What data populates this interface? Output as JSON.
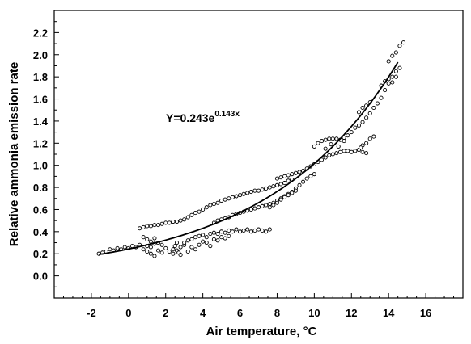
{
  "chart_data": {
    "type": "scatter",
    "title": "",
    "xlabel": "Air temperature, °C",
    "ylabel": "Relative ammonia emission rate",
    "xlim": [
      -4,
      18
    ],
    "ylim": [
      -0.2,
      2.4
    ],
    "x_ticks": [
      -2,
      0,
      2,
      4,
      6,
      8,
      10,
      12,
      14,
      16
    ],
    "y_ticks": [
      0.0,
      0.2,
      0.4,
      0.6,
      0.8,
      1.0,
      1.2,
      1.4,
      1.6,
      1.8,
      2.0,
      2.2
    ],
    "x_tick_labels": [
      "-2",
      "0",
      "2",
      "4",
      "6",
      "8",
      "10",
      "12",
      "14",
      "16"
    ],
    "y_tick_labels": [
      "0.0",
      "0.2",
      "0.4",
      "0.6",
      "0.8",
      "1.0",
      "1.2",
      "1.4",
      "1.6",
      "1.8",
      "2.0",
      "2.2"
    ],
    "grid": false,
    "legend": "none",
    "annotation": {
      "prefix": "Y=0.243e",
      "exponent": "0.143x"
    },
    "fit": {
      "model": "exponential",
      "a": 0.243,
      "b": 0.143,
      "x_range": [
        -1.6,
        14.5
      ]
    },
    "series": [
      {
        "marker": "open-circle",
        "points": [
          [
            -1.6,
            0.2
          ],
          [
            -1.4,
            0.21
          ],
          [
            -1.2,
            0.22
          ],
          [
            -1.0,
            0.24
          ],
          [
            -0.8,
            0.23
          ],
          [
            -0.6,
            0.25
          ],
          [
            -0.4,
            0.24
          ],
          [
            -0.2,
            0.26
          ],
          [
            0.0,
            0.25
          ],
          [
            0.2,
            0.27
          ],
          [
            0.4,
            0.26
          ],
          [
            0.6,
            0.28
          ],
          [
            0.8,
            0.24
          ],
          [
            1.0,
            0.27
          ],
          [
            1.2,
            0.26
          ],
          [
            1.4,
            0.29
          ],
          [
            1.6,
            0.23
          ],
          [
            1.8,
            0.21
          ],
          [
            2.0,
            0.25
          ],
          [
            2.2,
            0.22
          ],
          [
            2.4,
            0.24
          ],
          [
            2.6,
            0.23
          ],
          [
            2.8,
            0.26
          ],
          [
            3.0,
            0.28
          ],
          [
            0.8,
            0.35
          ],
          [
            1.0,
            0.33
          ],
          [
            1.2,
            0.31
          ],
          [
            1.4,
            0.34
          ],
          [
            1.0,
            0.22
          ],
          [
            1.2,
            0.2
          ],
          [
            1.4,
            0.18
          ],
          [
            1.6,
            0.3
          ],
          [
            1.8,
            0.28
          ],
          [
            2.4,
            0.2
          ],
          [
            2.5,
            0.27
          ],
          [
            2.6,
            0.3
          ],
          [
            2.7,
            0.21
          ],
          [
            2.8,
            0.19
          ],
          [
            0.6,
            0.43
          ],
          [
            0.8,
            0.44
          ],
          [
            1.0,
            0.45
          ],
          [
            1.2,
            0.45
          ],
          [
            1.4,
            0.46
          ],
          [
            1.6,
            0.46
          ],
          [
            1.8,
            0.47
          ],
          [
            2.0,
            0.48
          ],
          [
            2.2,
            0.48
          ],
          [
            2.4,
            0.49
          ],
          [
            2.6,
            0.49
          ],
          [
            2.8,
            0.5
          ],
          [
            3.0,
            0.3
          ],
          [
            3.2,
            0.32
          ],
          [
            3.4,
            0.33
          ],
          [
            3.6,
            0.35
          ],
          [
            3.8,
            0.36
          ],
          [
            4.0,
            0.37
          ],
          [
            4.2,
            0.35
          ],
          [
            4.4,
            0.38
          ],
          [
            4.6,
            0.39
          ],
          [
            4.8,
            0.38
          ],
          [
            5.0,
            0.4
          ],
          [
            5.2,
            0.39
          ],
          [
            5.4,
            0.41
          ],
          [
            5.6,
            0.4
          ],
          [
            5.8,
            0.42
          ],
          [
            6.0,
            0.4
          ],
          [
            6.2,
            0.41
          ],
          [
            6.4,
            0.42
          ],
          [
            6.6,
            0.4
          ],
          [
            6.8,
            0.41
          ],
          [
            7.0,
            0.42
          ],
          [
            7.2,
            0.41
          ],
          [
            7.4,
            0.4
          ],
          [
            7.6,
            0.42
          ],
          [
            3.2,
            0.22
          ],
          [
            3.4,
            0.26
          ],
          [
            3.6,
            0.24
          ],
          [
            3.8,
            0.28
          ],
          [
            4.0,
            0.31
          ],
          [
            4.2,
            0.3
          ],
          [
            4.4,
            0.27
          ],
          [
            4.6,
            0.33
          ],
          [
            4.8,
            0.32
          ],
          [
            5.0,
            0.35
          ],
          [
            5.2,
            0.34
          ],
          [
            5.4,
            0.36
          ],
          [
            3.0,
            0.51
          ],
          [
            3.2,
            0.53
          ],
          [
            3.4,
            0.55
          ],
          [
            3.6,
            0.57
          ],
          [
            3.8,
            0.58
          ],
          [
            4.0,
            0.6
          ],
          [
            4.2,
            0.62
          ],
          [
            4.4,
            0.64
          ],
          [
            4.6,
            0.65
          ],
          [
            4.8,
            0.66
          ],
          [
            5.0,
            0.68
          ],
          [
            5.2,
            0.69
          ],
          [
            5.4,
            0.7
          ],
          [
            5.6,
            0.71
          ],
          [
            5.8,
            0.72
          ],
          [
            6.0,
            0.73
          ],
          [
            6.2,
            0.74
          ],
          [
            6.4,
            0.75
          ],
          [
            6.6,
            0.76
          ],
          [
            6.8,
            0.77
          ],
          [
            7.0,
            0.77
          ],
          [
            7.2,
            0.78
          ],
          [
            7.4,
            0.79
          ],
          [
            7.6,
            0.8
          ],
          [
            7.8,
            0.81
          ],
          [
            8.0,
            0.82
          ],
          [
            8.2,
            0.83
          ],
          [
            8.4,
            0.84
          ],
          [
            8.6,
            0.86
          ],
          [
            8.8,
            0.87
          ],
          [
            4.6,
            0.48
          ],
          [
            4.8,
            0.5
          ],
          [
            5.0,
            0.51
          ],
          [
            5.2,
            0.52
          ],
          [
            5.4,
            0.53
          ],
          [
            5.6,
            0.55
          ],
          [
            5.8,
            0.56
          ],
          [
            6.0,
            0.57
          ],
          [
            6.2,
            0.58
          ],
          [
            6.4,
            0.59
          ],
          [
            6.6,
            0.6
          ],
          [
            6.8,
            0.61
          ],
          [
            7.0,
            0.62
          ],
          [
            7.2,
            0.63
          ],
          [
            7.4,
            0.64
          ],
          [
            7.6,
            0.65
          ],
          [
            7.8,
            0.66
          ],
          [
            8.0,
            0.68
          ],
          [
            8.2,
            0.7
          ],
          [
            8.4,
            0.72
          ],
          [
            8.6,
            0.74
          ],
          [
            8.8,
            0.76
          ],
          [
            9.0,
            0.79
          ],
          [
            9.2,
            0.82
          ],
          [
            9.4,
            0.85
          ],
          [
            9.6,
            0.88
          ],
          [
            9.8,
            0.9
          ],
          [
            10.0,
            0.92
          ],
          [
            7.6,
            0.62
          ],
          [
            7.8,
            0.64
          ],
          [
            8.0,
            0.66
          ],
          [
            8.2,
            0.69
          ],
          [
            8.4,
            0.71
          ],
          [
            8.6,
            0.73
          ],
          [
            8.8,
            0.75
          ],
          [
            9.0,
            0.77
          ],
          [
            8.0,
            0.88
          ],
          [
            8.2,
            0.89
          ],
          [
            8.4,
            0.9
          ],
          [
            8.6,
            0.91
          ],
          [
            8.8,
            0.92
          ],
          [
            9.0,
            0.93
          ],
          [
            9.2,
            0.94
          ],
          [
            9.4,
            0.95
          ],
          [
            9.6,
            0.97
          ],
          [
            9.8,
            0.99
          ],
          [
            10.0,
            1.01
          ],
          [
            10.2,
            1.03
          ],
          [
            10.4,
            1.05
          ],
          [
            10.6,
            1.07
          ],
          [
            10.8,
            1.09
          ],
          [
            11.0,
            1.1
          ],
          [
            11.2,
            1.11
          ],
          [
            11.4,
            1.12
          ],
          [
            11.6,
            1.13
          ],
          [
            11.8,
            1.13
          ],
          [
            12.0,
            1.12
          ],
          [
            12.2,
            1.13
          ],
          [
            12.4,
            1.14
          ],
          [
            12.6,
            1.12
          ],
          [
            12.8,
            1.11
          ],
          [
            10.0,
            1.17
          ],
          [
            10.2,
            1.2
          ],
          [
            10.4,
            1.22
          ],
          [
            10.6,
            1.23
          ],
          [
            10.8,
            1.24
          ],
          [
            11.0,
            1.24
          ],
          [
            11.2,
            1.24
          ],
          [
            11.4,
            1.23
          ],
          [
            11.6,
            1.22
          ],
          [
            12.6,
            1.18
          ],
          [
            12.8,
            1.2
          ],
          [
            13.0,
            1.24
          ],
          [
            13.2,
            1.26
          ],
          [
            12.5,
            1.16
          ],
          [
            10.6,
            1.15
          ],
          [
            10.9,
            1.19
          ],
          [
            11.3,
            1.17
          ],
          [
            11.6,
            1.25
          ],
          [
            11.8,
            1.27
          ],
          [
            12.0,
            1.3
          ],
          [
            12.2,
            1.34
          ],
          [
            12.4,
            1.36
          ],
          [
            12.6,
            1.39
          ],
          [
            12.8,
            1.43
          ],
          [
            13.0,
            1.47
          ],
          [
            13.2,
            1.52
          ],
          [
            13.4,
            1.56
          ],
          [
            13.6,
            1.61
          ],
          [
            13.8,
            1.68
          ],
          [
            14.0,
            1.74
          ],
          [
            14.2,
            1.8
          ],
          [
            14.4,
            1.85
          ],
          [
            14.6,
            1.88
          ],
          [
            13.6,
            1.72
          ],
          [
            13.8,
            1.76
          ],
          [
            14.0,
            1.78
          ],
          [
            14.2,
            1.75
          ],
          [
            14.4,
            1.8
          ],
          [
            14.0,
            1.94
          ],
          [
            14.2,
            1.99
          ],
          [
            14.4,
            2.02
          ],
          [
            14.6,
            2.08
          ],
          [
            14.8,
            2.11
          ],
          [
            12.4,
            1.48
          ],
          [
            12.6,
            1.52
          ],
          [
            12.8,
            1.54
          ],
          [
            13.0,
            1.57
          ]
        ]
      }
    ]
  }
}
